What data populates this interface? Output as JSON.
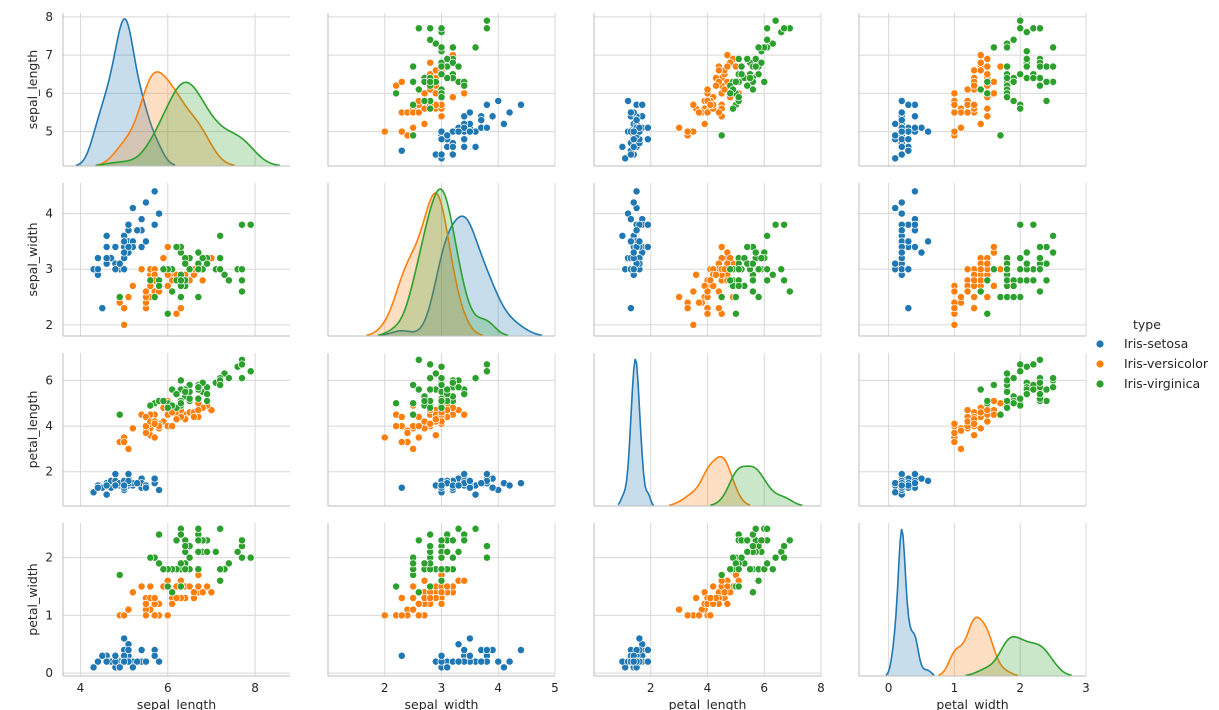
{
  "chart_data": {
    "type": "scatter",
    "title": "",
    "variables": [
      "sepal_length",
      "sepal_width",
      "petal_length",
      "petal_width"
    ],
    "legend": {
      "title": "type",
      "placement": "center-right"
    },
    "grid": true,
    "species": [
      {
        "name": "Iris-setosa",
        "color": "#1f77b4"
      },
      {
        "name": "Iris-versicolor",
        "color": "#ff7f0e"
      },
      {
        "name": "Iris-virginica",
        "color": "#2ca02c"
      }
    ],
    "axes": {
      "sepal_length": {
        "lim": [
          3.6,
          8.8
        ],
        "ticks": [
          4,
          6,
          8
        ],
        "row_ticks": [
          5,
          6,
          7,
          8
        ],
        "row_lim": [
          4.1,
          8.1
        ]
      },
      "sepal_width": {
        "lim": [
          1.0,
          5.0
        ],
        "ticks": [
          2,
          3,
          4,
          5
        ],
        "row_ticks": [
          2,
          3,
          4
        ],
        "row_lim": [
          1.8,
          4.55
        ]
      },
      "petal_length": {
        "lim": [
          0.0,
          8.0
        ],
        "ticks": [
          2,
          4,
          6,
          8
        ],
        "row_ticks": [
          2,
          4,
          6
        ],
        "row_lim": [
          0.5,
          7.2
        ]
      },
      "petal_width": {
        "lim": [
          -0.45,
          3.0
        ],
        "ticks": [
          0,
          1,
          2,
          3
        ],
        "row_ticks": [
          0,
          1,
          2
        ],
        "row_lim": [
          -0.05,
          2.6
        ]
      }
    },
    "series": [
      {
        "name": "Iris-setosa",
        "points": [
          [
            5.1,
            3.5,
            1.4,
            0.2
          ],
          [
            4.9,
            3.0,
            1.4,
            0.2
          ],
          [
            4.7,
            3.2,
            1.3,
            0.2
          ],
          [
            4.6,
            3.1,
            1.5,
            0.2
          ],
          [
            5.0,
            3.6,
            1.4,
            0.2
          ],
          [
            5.4,
            3.9,
            1.7,
            0.4
          ],
          [
            4.6,
            3.4,
            1.4,
            0.3
          ],
          [
            5.0,
            3.4,
            1.5,
            0.2
          ],
          [
            4.4,
            2.9,
            1.4,
            0.2
          ],
          [
            4.9,
            3.1,
            1.5,
            0.1
          ],
          [
            5.4,
            3.7,
            1.5,
            0.2
          ],
          [
            4.8,
            3.4,
            1.6,
            0.2
          ],
          [
            4.8,
            3.0,
            1.4,
            0.1
          ],
          [
            4.3,
            3.0,
            1.1,
            0.1
          ],
          [
            5.8,
            4.0,
            1.2,
            0.2
          ],
          [
            5.7,
            4.4,
            1.5,
            0.4
          ],
          [
            5.4,
            3.9,
            1.3,
            0.4
          ],
          [
            5.1,
            3.5,
            1.4,
            0.3
          ],
          [
            5.7,
            3.8,
            1.7,
            0.3
          ],
          [
            5.1,
            3.8,
            1.5,
            0.3
          ],
          [
            5.4,
            3.4,
            1.7,
            0.2
          ],
          [
            5.1,
            3.7,
            1.5,
            0.4
          ],
          [
            4.6,
            3.6,
            1.0,
            0.2
          ],
          [
            5.1,
            3.3,
            1.7,
            0.5
          ],
          [
            4.8,
            3.4,
            1.9,
            0.2
          ],
          [
            5.0,
            3.0,
            1.6,
            0.2
          ],
          [
            5.0,
            3.4,
            1.6,
            0.4
          ],
          [
            5.2,
            3.5,
            1.5,
            0.2
          ],
          [
            5.2,
            3.4,
            1.4,
            0.2
          ],
          [
            4.7,
            3.2,
            1.6,
            0.2
          ],
          [
            4.8,
            3.1,
            1.6,
            0.2
          ],
          [
            5.4,
            3.4,
            1.5,
            0.4
          ],
          [
            5.2,
            4.1,
            1.5,
            0.1
          ],
          [
            5.5,
            4.2,
            1.4,
            0.2
          ],
          [
            4.9,
            3.1,
            1.5,
            0.1
          ],
          [
            5.0,
            3.2,
            1.2,
            0.2
          ],
          [
            5.5,
            3.5,
            1.3,
            0.2
          ],
          [
            4.9,
            3.1,
            1.5,
            0.1
          ],
          [
            4.4,
            3.0,
            1.3,
            0.2
          ],
          [
            5.1,
            3.4,
            1.5,
            0.2
          ],
          [
            5.0,
            3.5,
            1.3,
            0.3
          ],
          [
            4.5,
            2.3,
            1.3,
            0.3
          ],
          [
            4.4,
            3.2,
            1.3,
            0.2
          ],
          [
            5.0,
            3.5,
            1.6,
            0.6
          ],
          [
            5.1,
            3.8,
            1.9,
            0.4
          ],
          [
            4.8,
            3.0,
            1.4,
            0.3
          ],
          [
            5.1,
            3.8,
            1.6,
            0.2
          ],
          [
            4.6,
            3.2,
            1.4,
            0.2
          ],
          [
            5.3,
            3.7,
            1.5,
            0.2
          ],
          [
            5.0,
            3.3,
            1.4,
            0.2
          ]
        ]
      },
      {
        "name": "Iris-versicolor",
        "points": [
          [
            7.0,
            3.2,
            4.7,
            1.4
          ],
          [
            6.4,
            3.2,
            4.5,
            1.5
          ],
          [
            6.9,
            3.1,
            4.9,
            1.5
          ],
          [
            5.5,
            2.3,
            4.0,
            1.3
          ],
          [
            6.5,
            2.8,
            4.6,
            1.5
          ],
          [
            5.7,
            2.8,
            4.5,
            1.3
          ],
          [
            6.3,
            3.3,
            4.7,
            1.6
          ],
          [
            4.9,
            2.4,
            3.3,
            1.0
          ],
          [
            6.6,
            2.9,
            4.6,
            1.3
          ],
          [
            5.2,
            2.7,
            3.9,
            1.4
          ],
          [
            5.0,
            2.0,
            3.5,
            1.0
          ],
          [
            5.9,
            3.0,
            4.2,
            1.5
          ],
          [
            6.0,
            2.2,
            4.0,
            1.0
          ],
          [
            6.1,
            2.9,
            4.7,
            1.4
          ],
          [
            5.6,
            2.9,
            3.6,
            1.3
          ],
          [
            6.7,
            3.1,
            4.4,
            1.4
          ],
          [
            5.6,
            3.0,
            4.5,
            1.5
          ],
          [
            5.8,
            2.7,
            4.1,
            1.0
          ],
          [
            6.2,
            2.2,
            4.5,
            1.5
          ],
          [
            5.6,
            2.5,
            3.9,
            1.1
          ],
          [
            5.9,
            3.2,
            4.8,
            1.8
          ],
          [
            6.1,
            2.8,
            4.0,
            1.3
          ],
          [
            6.3,
            2.5,
            4.9,
            1.5
          ],
          [
            6.1,
            2.8,
            4.7,
            1.2
          ],
          [
            6.4,
            2.9,
            4.3,
            1.3
          ],
          [
            6.6,
            3.0,
            4.4,
            1.4
          ],
          [
            6.8,
            2.8,
            4.8,
            1.4
          ],
          [
            6.7,
            3.0,
            5.0,
            1.7
          ],
          [
            6.0,
            2.9,
            4.5,
            1.5
          ],
          [
            5.7,
            2.6,
            3.5,
            1.0
          ],
          [
            5.5,
            2.4,
            3.8,
            1.1
          ],
          [
            5.5,
            2.4,
            3.7,
            1.0
          ],
          [
            5.8,
            2.7,
            3.9,
            1.2
          ],
          [
            6.0,
            2.7,
            5.1,
            1.6
          ],
          [
            5.4,
            3.0,
            4.5,
            1.5
          ],
          [
            6.0,
            3.4,
            4.5,
            1.6
          ],
          [
            6.7,
            3.1,
            4.7,
            1.5
          ],
          [
            6.3,
            2.3,
            4.4,
            1.3
          ],
          [
            5.6,
            3.0,
            4.1,
            1.3
          ],
          [
            5.5,
            2.5,
            4.0,
            1.3
          ],
          [
            5.5,
            2.6,
            4.4,
            1.2
          ],
          [
            6.1,
            3.0,
            4.6,
            1.4
          ],
          [
            5.8,
            2.6,
            4.0,
            1.2
          ],
          [
            5.0,
            2.3,
            3.3,
            1.0
          ],
          [
            5.6,
            2.7,
            4.2,
            1.3
          ],
          [
            5.7,
            3.0,
            4.2,
            1.2
          ],
          [
            5.7,
            2.9,
            4.2,
            1.3
          ],
          [
            6.2,
            2.9,
            4.3,
            1.3
          ],
          [
            5.1,
            2.5,
            3.0,
            1.1
          ],
          [
            5.7,
            2.8,
            4.1,
            1.3
          ]
        ]
      },
      {
        "name": "Iris-virginica",
        "points": [
          [
            6.3,
            3.3,
            6.0,
            2.5
          ],
          [
            5.8,
            2.7,
            5.1,
            1.9
          ],
          [
            7.1,
            3.0,
            5.9,
            2.1
          ],
          [
            6.3,
            2.9,
            5.6,
            1.8
          ],
          [
            6.5,
            3.0,
            5.8,
            2.2
          ],
          [
            7.6,
            3.0,
            6.6,
            2.1
          ],
          [
            4.9,
            2.5,
            4.5,
            1.7
          ],
          [
            7.3,
            2.9,
            6.3,
            1.8
          ],
          [
            6.7,
            2.5,
            5.8,
            1.8
          ],
          [
            7.2,
            3.6,
            6.1,
            2.5
          ],
          [
            6.5,
            3.2,
            5.1,
            2.0
          ],
          [
            6.4,
            2.7,
            5.3,
            1.9
          ],
          [
            6.8,
            3.0,
            5.5,
            2.1
          ],
          [
            5.7,
            2.5,
            5.0,
            2.0
          ],
          [
            5.8,
            2.8,
            5.1,
            2.4
          ],
          [
            6.4,
            3.2,
            5.3,
            2.3
          ],
          [
            6.5,
            3.0,
            5.5,
            1.8
          ],
          [
            7.7,
            3.8,
            6.7,
            2.2
          ],
          [
            7.7,
            2.6,
            6.9,
            2.3
          ],
          [
            6.0,
            2.2,
            5.0,
            1.5
          ],
          [
            6.9,
            3.2,
            5.7,
            2.3
          ],
          [
            5.6,
            2.8,
            4.9,
            2.0
          ],
          [
            7.7,
            2.8,
            6.7,
            2.0
          ],
          [
            6.3,
            2.7,
            4.9,
            1.8
          ],
          [
            6.7,
            3.3,
            5.7,
            2.1
          ],
          [
            7.2,
            3.2,
            6.0,
            1.8
          ],
          [
            6.2,
            2.8,
            4.8,
            1.8
          ],
          [
            6.1,
            3.0,
            4.9,
            1.8
          ],
          [
            6.4,
            2.8,
            5.6,
            2.1
          ],
          [
            7.2,
            3.0,
            5.8,
            1.6
          ],
          [
            7.4,
            2.8,
            6.1,
            1.9
          ],
          [
            7.9,
            3.8,
            6.4,
            2.0
          ],
          [
            6.4,
            2.8,
            5.6,
            2.2
          ],
          [
            6.3,
            2.8,
            5.1,
            1.5
          ],
          [
            6.1,
            2.6,
            5.6,
            1.4
          ],
          [
            7.7,
            3.0,
            6.1,
            2.3
          ],
          [
            6.3,
            3.4,
            5.6,
            2.4
          ],
          [
            6.4,
            3.1,
            5.5,
            1.8
          ],
          [
            6.0,
            3.0,
            4.8,
            1.8
          ],
          [
            6.9,
            3.1,
            5.4,
            2.1
          ],
          [
            6.7,
            3.1,
            5.6,
            2.4
          ],
          [
            6.9,
            3.1,
            5.1,
            2.3
          ],
          [
            5.8,
            2.7,
            5.1,
            1.9
          ],
          [
            6.8,
            3.2,
            5.9,
            2.3
          ],
          [
            6.7,
            3.3,
            5.7,
            2.5
          ],
          [
            6.7,
            3.0,
            5.2,
            2.3
          ],
          [
            6.3,
            2.5,
            5.0,
            1.9
          ],
          [
            6.5,
            3.0,
            5.2,
            2.0
          ],
          [
            6.2,
            3.4,
            5.4,
            2.3
          ],
          [
            5.9,
            3.0,
            5.1,
            1.8
          ]
        ]
      }
    ]
  }
}
